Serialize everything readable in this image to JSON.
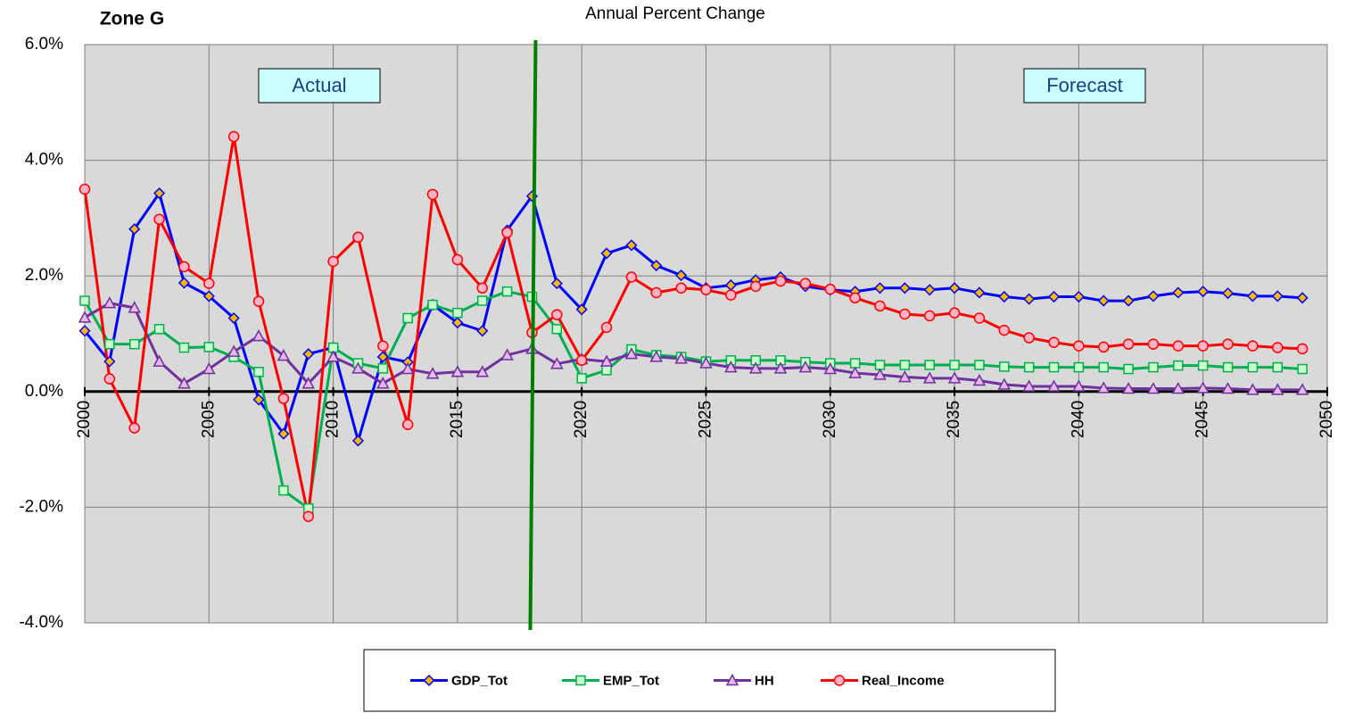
{
  "chart_data": {
    "type": "line",
    "title": "Annual Percent Change",
    "annotations": [
      "Zone G",
      "Actual",
      "Forecast"
    ],
    "x": [
      2000,
      2001,
      2002,
      2003,
      2004,
      2005,
      2006,
      2007,
      2008,
      2009,
      2010,
      2011,
      2012,
      2013,
      2014,
      2015,
      2016,
      2017,
      2018,
      2019,
      2020,
      2021,
      2022,
      2023,
      2024,
      2025,
      2026,
      2027,
      2028,
      2029,
      2030,
      2031,
      2032,
      2033,
      2034,
      2035,
      2036,
      2037,
      2038,
      2039,
      2040,
      2041,
      2042,
      2043,
      2044,
      2045,
      2046,
      2047,
      2048,
      2049
    ],
    "xlim": [
      2000,
      2050
    ],
    "xticks": [
      2000,
      2005,
      2010,
      2015,
      2020,
      2025,
      2030,
      2035,
      2040,
      2045,
      2050
    ],
    "ylim": [
      -4,
      6
    ],
    "yticks": [
      {
        "value": -4,
        "label": "-4.0%"
      },
      {
        "value": -2,
        "label": "-2.0%"
      },
      {
        "value": 0,
        "label": "0.0%"
      },
      {
        "value": 2,
        "label": "2.0%"
      },
      {
        "value": 4,
        "label": "4.0%"
      },
      {
        "value": 6,
        "label": "6.0%"
      }
    ],
    "grid": true,
    "legend": "bottom",
    "divider": {
      "x": 2018,
      "color": "#008000"
    },
    "series": [
      {
        "name": "GDP_Tot",
        "color": "#0000ff",
        "marker": "diamond",
        "marker_fill": "#f5b800",
        "values": [
          1.05,
          0.52,
          2.81,
          3.43,
          1.88,
          1.65,
          1.27,
          -0.14,
          -0.73,
          0.65,
          0.76,
          -0.85,
          0.6,
          0.51,
          1.5,
          1.19,
          1.05,
          2.79,
          3.38,
          1.87,
          1.42,
          2.39,
          2.53,
          2.18,
          2.01,
          1.79,
          1.84,
          1.93,
          1.98,
          1.82,
          1.76,
          1.73,
          1.79,
          1.79,
          1.76,
          1.79,
          1.71,
          1.64,
          1.6,
          1.64,
          1.64,
          1.57,
          1.57,
          1.65,
          1.71,
          1.73,
          1.7,
          1.65,
          1.65,
          1.62
        ]
      },
      {
        "name": "EMP_Tot",
        "color": "#00b050",
        "marker": "square",
        "marker_fill": "#ccffcc",
        "values": [
          1.57,
          0.82,
          0.82,
          1.08,
          0.76,
          0.77,
          0.6,
          0.34,
          -1.71,
          -2.02,
          0.76,
          0.49,
          0.4,
          1.27,
          1.5,
          1.36,
          1.57,
          1.73,
          1.64,
          1.08,
          0.23,
          0.37,
          0.73,
          0.63,
          0.6,
          0.52,
          0.54,
          0.54,
          0.54,
          0.51,
          0.49,
          0.49,
          0.46,
          0.46,
          0.46,
          0.46,
          0.46,
          0.43,
          0.42,
          0.42,
          0.42,
          0.42,
          0.39,
          0.42,
          0.45,
          0.45,
          0.42,
          0.42,
          0.42,
          0.39
        ]
      },
      {
        "name": "HH",
        "color": "#7030a0",
        "marker": "triangle",
        "marker_fill": "#e6b8e6",
        "values": [
          1.28,
          1.53,
          1.45,
          0.52,
          0.14,
          0.39,
          0.69,
          0.96,
          0.62,
          0.14,
          0.6,
          0.4,
          0.14,
          0.39,
          0.31,
          0.34,
          0.34,
          0.63,
          0.74,
          0.48,
          0.56,
          0.52,
          0.65,
          0.6,
          0.57,
          0.49,
          0.42,
          0.4,
          0.4,
          0.42,
          0.39,
          0.32,
          0.29,
          0.25,
          0.23,
          0.23,
          0.19,
          0.12,
          0.09,
          0.09,
          0.09,
          0.06,
          0.05,
          0.05,
          0.05,
          0.06,
          0.05,
          0.03,
          0.03,
          0.03
        ]
      },
      {
        "name": "Real_Income",
        "color": "#ff0000",
        "marker": "circle",
        "marker_fill": "#ffb3c6",
        "values": [
          3.5,
          0.22,
          -0.63,
          2.98,
          2.16,
          1.87,
          4.41,
          1.56,
          -0.12,
          -2.16,
          2.25,
          2.67,
          0.79,
          -0.57,
          3.41,
          2.28,
          1.79,
          2.75,
          1.02,
          1.33,
          0.54,
          1.11,
          1.98,
          1.71,
          1.79,
          1.76,
          1.67,
          1.82,
          1.91,
          1.87,
          1.77,
          1.62,
          1.48,
          1.34,
          1.31,
          1.36,
          1.27,
          1.06,
          0.93,
          0.85,
          0.79,
          0.77,
          0.82,
          0.82,
          0.79,
          0.79,
          0.82,
          0.79,
          0.76,
          0.74
        ]
      }
    ]
  }
}
